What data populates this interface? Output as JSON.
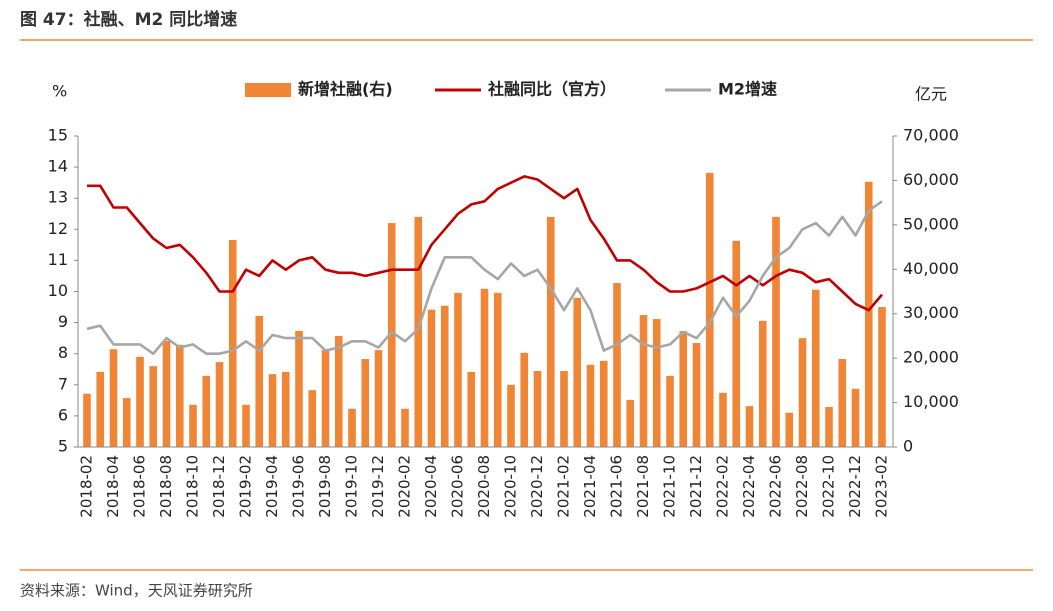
{
  "chart_data": {
    "type": "bar_line_combo",
    "title": "图 47：社融、M2 同比增速",
    "source": "资料来源：Wind，天风证券研究所",
    "y_label": "%",
    "y2_label": "亿元",
    "categories": [
      "2018-02",
      null,
      "2018-04",
      null,
      "2018-06",
      null,
      "2018-08",
      null,
      "2018-10",
      null,
      "2018-12",
      null,
      "2019-02",
      null,
      "2019-04",
      null,
      "2019-06",
      null,
      "2019-08",
      null,
      "2019-10",
      null,
      "2019-12",
      null,
      "2020-02",
      null,
      "2020-04",
      null,
      "2020-06",
      null,
      "2020-08",
      null,
      "2020-10",
      null,
      "2020-12",
      null,
      "2021-02",
      null,
      "2021-04",
      null,
      "2021-06",
      null,
      "2021-08",
      null,
      "2021-10",
      null,
      "2021-12",
      null,
      "2022-02",
      null,
      "2022-04",
      null,
      "2022-06",
      null,
      "2022-08",
      null,
      "2022-10",
      null,
      "2022-12",
      null,
      "2023-02"
    ],
    "ylim": [
      5,
      15
    ],
    "yticks": [
      5,
      6,
      7,
      8,
      9,
      10,
      11,
      12,
      13,
      14,
      15
    ],
    "y2lim": [
      0,
      70000
    ],
    "y2ticks": [
      0,
      {
        "value": 10000,
        "label": "10,000"
      },
      {
        "value": 20000,
        "label": "20,000"
      },
      {
        "value": 30000,
        "label": "30,000"
      },
      {
        "value": 40000,
        "label": "40,000"
      },
      {
        "value": 50000,
        "label": "50,000"
      },
      {
        "value": 60000,
        "label": "60,000"
      },
      {
        "value": 70000,
        "label": "70,000"
      }
    ],
    "series": [
      {
        "name": "新增社融(右)",
        "type": "bar",
        "axis": "y2",
        "color": "#ef8535",
        "values": [
          12000,
          16900,
          22000,
          11000,
          20300,
          18200,
          23900,
          23000,
          9500,
          16000,
          19100,
          46600,
          9500,
          29500,
          16400,
          16900,
          26100,
          12800,
          21800,
          25000,
          8600,
          19800,
          21800,
          50400,
          8600,
          51800,
          30900,
          31800,
          34700,
          16900,
          35600,
          34700,
          14000,
          21200,
          17100,
          51800,
          17100,
          33600,
          18500,
          19400,
          36900,
          10600,
          29700,
          28800,
          16000,
          26100,
          23400,
          61700,
          12200,
          46400,
          9200,
          28400,
          51800,
          7700,
          24500,
          35400,
          9000,
          19800,
          13100,
          59700,
          31500
        ]
      },
      {
        "name": "社融同比（官方）",
        "type": "line",
        "axis": "y",
        "color": "#c00000",
        "values": [
          13.4,
          13.4,
          12.7,
          12.7,
          12.2,
          11.7,
          11.4,
          11.5,
          11.1,
          10.6,
          10.0,
          10.0,
          10.7,
          10.5,
          11.0,
          10.7,
          11.0,
          11.1,
          10.7,
          10.6,
          10.6,
          10.5,
          10.6,
          10.7,
          10.7,
          10.7,
          11.5,
          12.0,
          12.5,
          12.8,
          12.9,
          13.3,
          13.5,
          13.7,
          13.6,
          13.3,
          13.0,
          13.3,
          12.3,
          11.7,
          11.0,
          11.0,
          10.7,
          10.3,
          10.0,
          10.0,
          10.1,
          10.3,
          10.5,
          10.2,
          10.5,
          10.2,
          10.5,
          10.7,
          10.6,
          10.3,
          10.4,
          10.0,
          9.6,
          9.4,
          9.9
        ]
      },
      {
        "name": "M2增速",
        "type": "line",
        "axis": "y",
        "color": "#a6a6a6",
        "values": [
          8.8,
          8.9,
          8.3,
          8.3,
          8.3,
          8.0,
          8.5,
          8.2,
          8.3,
          8.0,
          8.0,
          8.1,
          8.4,
          8.1,
          8.6,
          8.5,
          8.5,
          8.5,
          8.1,
          8.2,
          8.4,
          8.4,
          8.2,
          8.7,
          8.4,
          8.8,
          10.1,
          11.1,
          11.1,
          11.1,
          10.7,
          10.4,
          10.9,
          10.5,
          10.7,
          10.1,
          9.4,
          10.1,
          9.4,
          8.1,
          8.3,
          8.6,
          8.3,
          8.2,
          8.3,
          8.7,
          8.5,
          9.0,
          9.8,
          9.2,
          9.7,
          10.5,
          11.1,
          11.4,
          12.0,
          12.2,
          11.8,
          12.4,
          11.8,
          12.6,
          12.9
        ]
      }
    ]
  }
}
